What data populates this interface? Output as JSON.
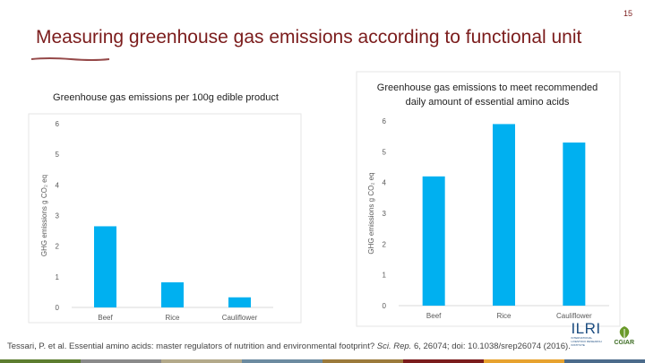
{
  "slide": {
    "title": "Measuring greenhouse gas emissions according to functional unit",
    "page_number": "15",
    "citation_part1": "Tessari, P. et al. Essential amino acids: master regulators of nutrition and environmental footprint? ",
    "citation_journal": "Sci. Rep.",
    "citation_part2": " 6, 26074; doi: 10.1038/srep26074 (2016).",
    "logos": {
      "ilri": "ILRI",
      "ilri_sub": "INTERNATIONAL LIVESTOCK RESEARCH INSTITUTE",
      "cgiar": "CGIAR"
    },
    "colors": {
      "title": "#7b1c1c",
      "bar": "#00b0f0",
      "axis": "#d9d9d9"
    }
  },
  "chart_data": [
    {
      "type": "bar",
      "title": "Greenhouse gas emissions per 100g edible product",
      "ylabel": "GHG emissions g CO₂ eq",
      "xlabel": "",
      "categories": [
        "Beef",
        "Rice",
        "Cauliflower"
      ],
      "values": [
        2.65,
        0.82,
        0.33
      ],
      "yticks": [
        0,
        1,
        2,
        3,
        4,
        5,
        6
      ],
      "ylim": [
        0,
        6
      ],
      "grid": false
    },
    {
      "type": "bar",
      "title": "Greenhouse gas emissions to meet recommended daily amount of essential amino acids",
      "ylabel": "GHG emissions g CO₂ eq",
      "xlabel": "",
      "categories": [
        "Beef",
        "Rice",
        "Cauliflower"
      ],
      "values": [
        4.2,
        5.9,
        5.3
      ],
      "yticks": [
        0,
        1,
        2,
        3,
        4,
        5,
        6
      ],
      "ylim": [
        0,
        6
      ],
      "grid": false
    }
  ]
}
